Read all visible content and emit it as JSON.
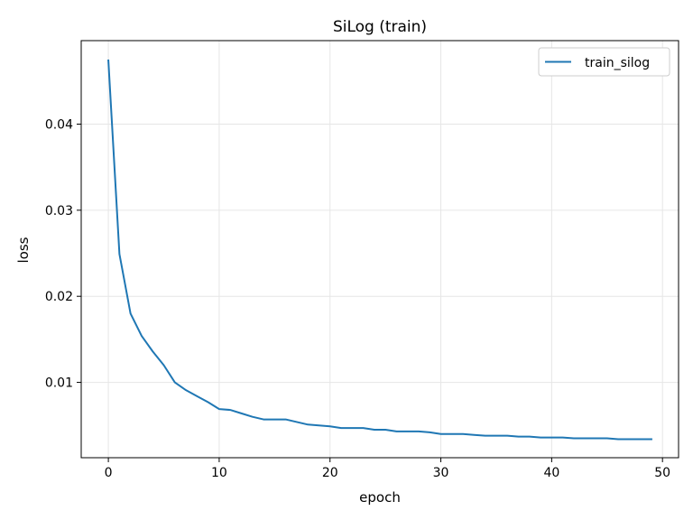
{
  "chart_data": {
    "type": "line",
    "title": "SiLog (train)",
    "xlabel": "epoch",
    "ylabel": "loss",
    "xlim": [
      -2.45,
      51.45
    ],
    "ylim": [
      0.00125,
      0.0497
    ],
    "xticks": [
      0,
      10,
      20,
      30,
      40,
      50
    ],
    "yticks": [
      0.01,
      0.02,
      0.03,
      0.04
    ],
    "xtick_labels": [
      "0",
      "10",
      "20",
      "30",
      "40",
      "50"
    ],
    "ytick_labels": [
      "0.01",
      "0.02",
      "0.03",
      "0.04"
    ],
    "grid": true,
    "legend_position": "top-right",
    "colors": {
      "series": "#1f77b4"
    },
    "series": [
      {
        "name": "train_silog",
        "x": [
          0,
          1,
          2,
          3,
          4,
          5,
          6,
          7,
          8,
          9,
          10,
          11,
          12,
          13,
          14,
          15,
          16,
          17,
          18,
          19,
          20,
          21,
          22,
          23,
          24,
          25,
          26,
          27,
          28,
          29,
          30,
          31,
          32,
          33,
          34,
          35,
          36,
          37,
          38,
          39,
          40,
          41,
          42,
          43,
          44,
          45,
          46,
          47,
          48,
          49
        ],
        "y": [
          0.0474,
          0.0249,
          0.018,
          0.0154,
          0.0136,
          0.012,
          0.01,
          0.0091,
          0.0084,
          0.0077,
          0.0069,
          0.0068,
          0.0064,
          0.006,
          0.0057,
          0.0057,
          0.0057,
          0.0054,
          0.0051,
          0.005,
          0.0049,
          0.0047,
          0.0047,
          0.0047,
          0.0045,
          0.0045,
          0.0043,
          0.0043,
          0.0043,
          0.0042,
          0.004,
          0.004,
          0.004,
          0.0039,
          0.0038,
          0.0038,
          0.0038,
          0.0037,
          0.0037,
          0.0036,
          0.0036,
          0.0036,
          0.0035,
          0.0035,
          0.0035,
          0.0035,
          0.0034,
          0.0034,
          0.0034,
          0.0034
        ]
      }
    ]
  }
}
